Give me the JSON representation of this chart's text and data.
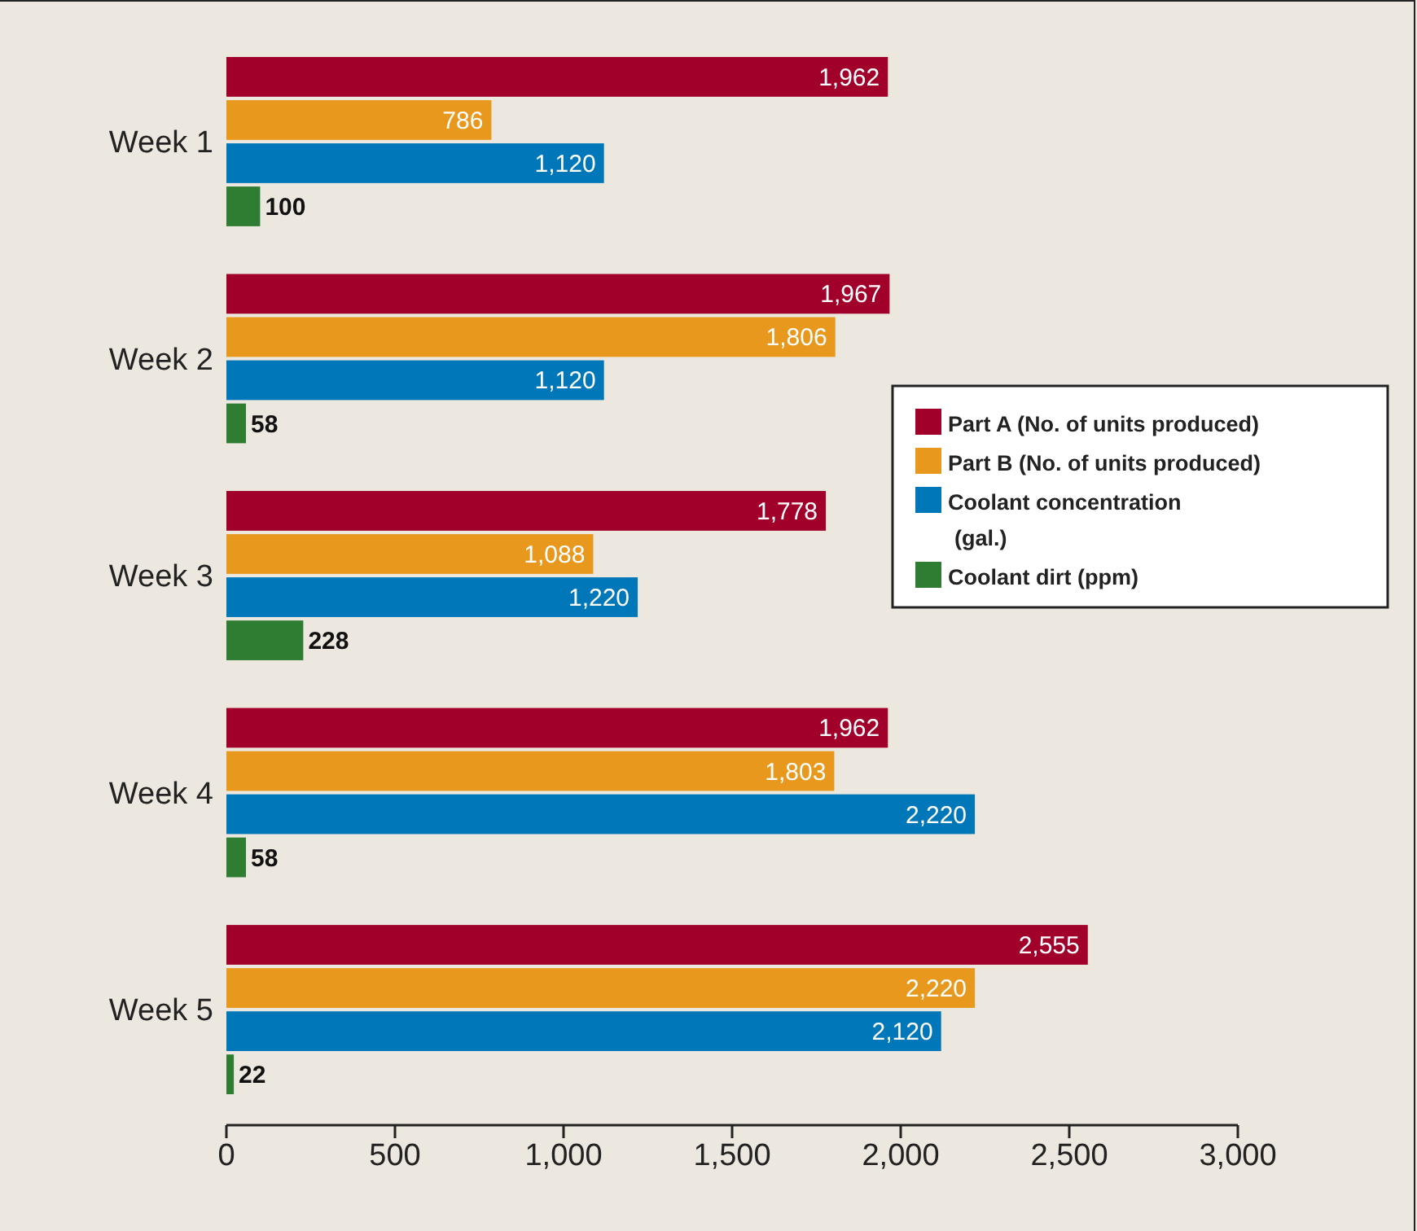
{
  "chart_data": {
    "type": "bar",
    "orientation": "horizontal",
    "categories": [
      "Week 1",
      "Week 2",
      "Week 3",
      "Week 4",
      "Week 5"
    ],
    "series": [
      {
        "name": "Part A (No. of units produced)",
        "color": "#a0002a",
        "values": [
          1962,
          1967,
          1778,
          1962,
          2555
        ],
        "value_labels": [
          "1,962",
          "1,967",
          "1,778",
          "1,962",
          "2,555"
        ]
      },
      {
        "name": "Part B (No. of units produced)",
        "color": "#e8981c",
        "values": [
          786,
          1806,
          1088,
          1803,
          2220
        ],
        "value_labels": [
          "786",
          "1,806",
          "1,088",
          "1,803",
          "2,220"
        ]
      },
      {
        "name": "Coolant concentration (gal.)",
        "color": "#0077b8",
        "values": [
          1120,
          1120,
          1220,
          2220,
          2120
        ],
        "value_labels": [
          "1,120",
          "1,120",
          "1,220",
          "2,220",
          "2,120"
        ]
      },
      {
        "name": "Coolant dirt (ppm)",
        "color": "#2e7d32",
        "values": [
          100,
          58,
          228,
          58,
          22
        ],
        "value_labels": [
          "100",
          "58",
          "228",
          "58",
          "22"
        ]
      }
    ],
    "xlim": [
      0,
      3000
    ],
    "xticks": [
      0,
      500,
      {
        "value": 1000,
        "label": "1,000"
      },
      {
        "value": 1500,
        "label": "1,500"
      },
      {
        "value": 2000,
        "label": "2,000"
      },
      {
        "value": 2500,
        "label": "2,500"
      },
      {
        "value": 3000,
        "label": "3,000"
      }
    ],
    "legend": "right"
  }
}
